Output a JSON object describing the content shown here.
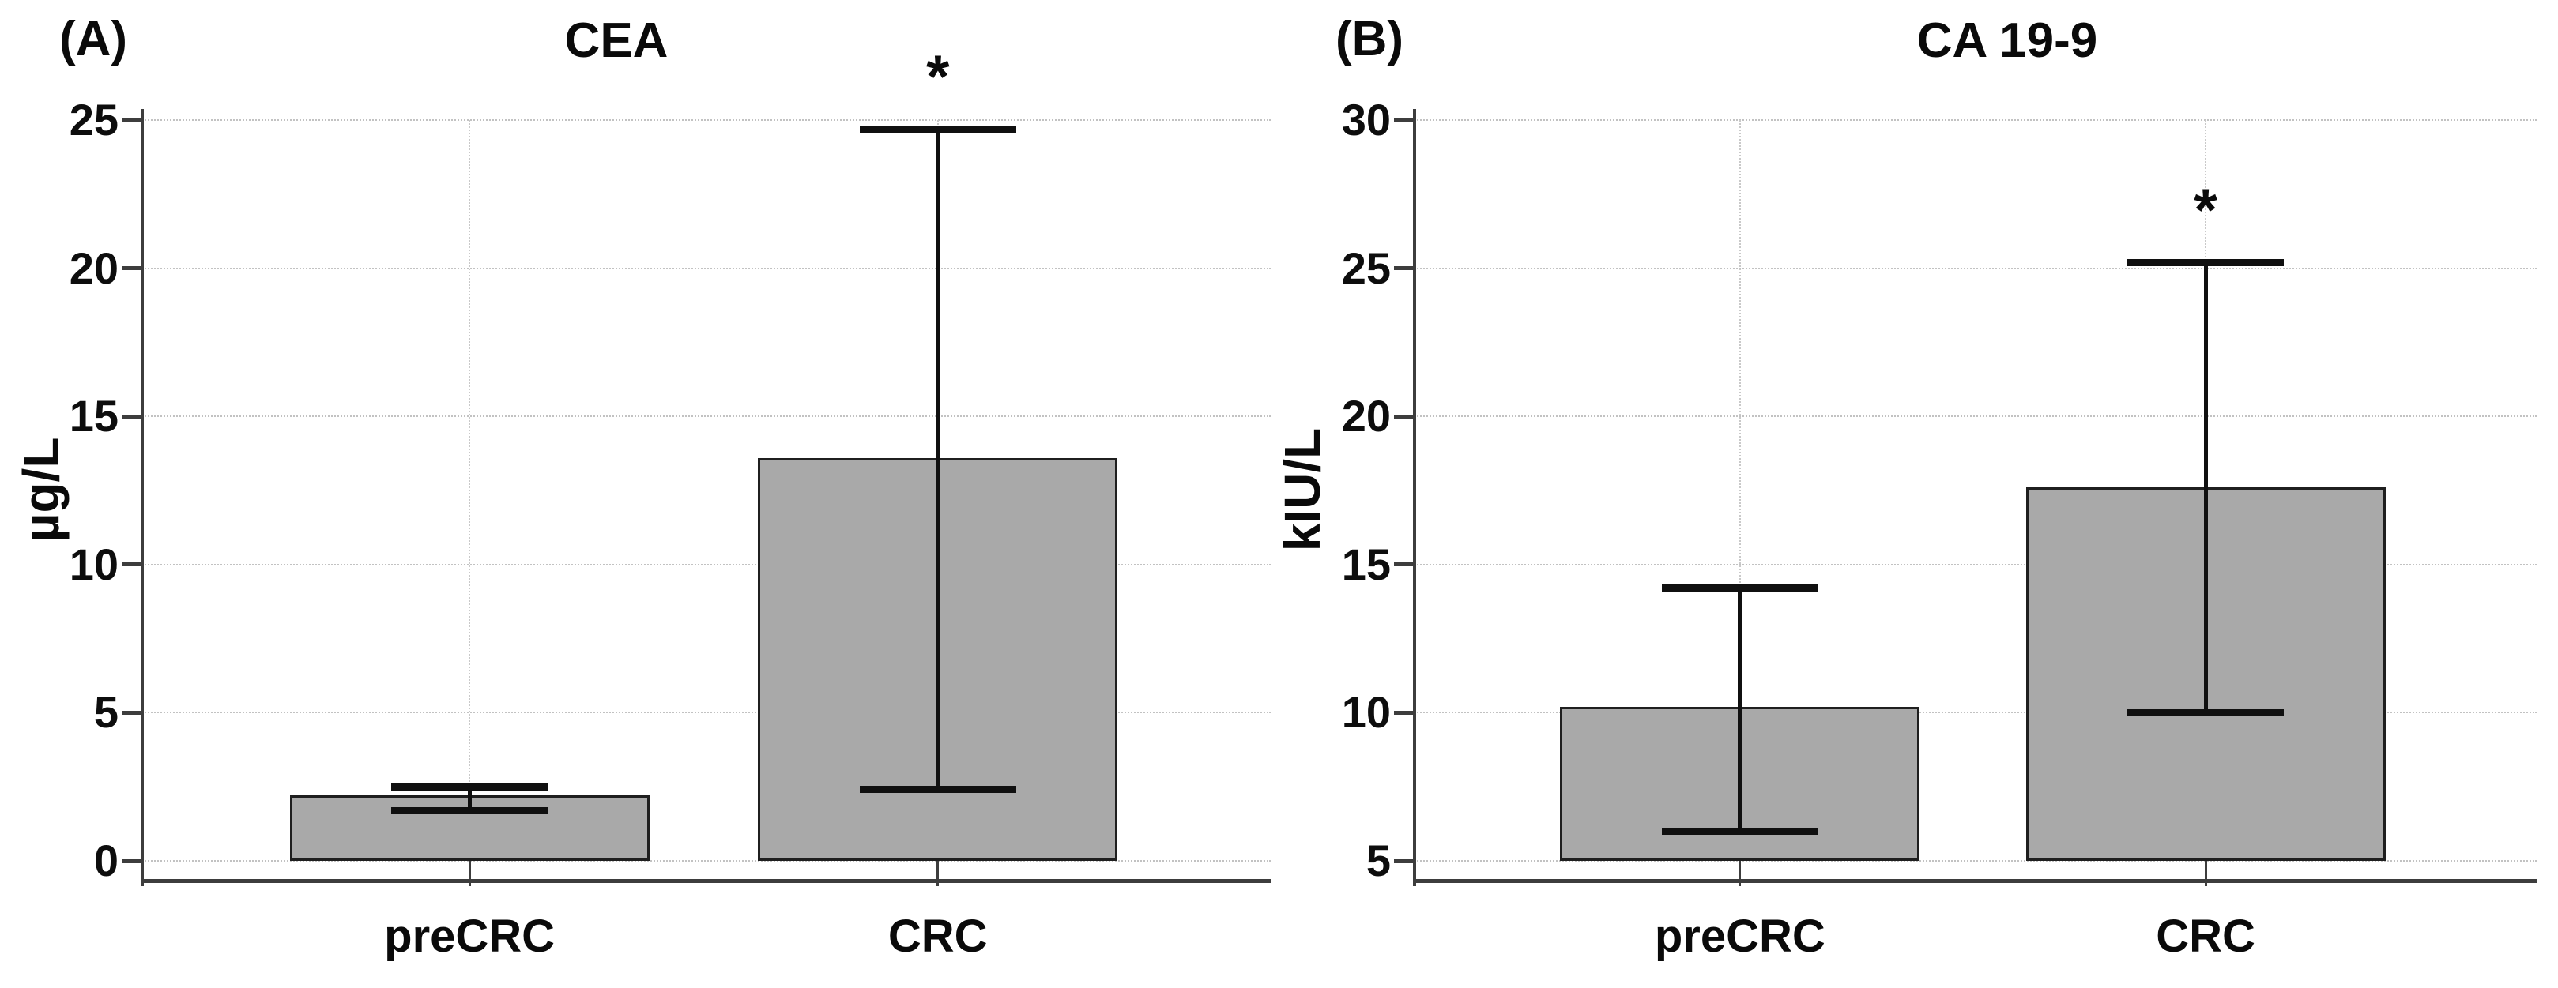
{
  "chart_data": [
    {
      "type": "bar",
      "panel_label": "(A)",
      "title": "CEA",
      "ylabel": "µg/L",
      "xlabel": "",
      "categories": [
        "preCRC",
        "CRC"
      ],
      "values": [
        2.2,
        13.6
      ],
      "error_low": [
        1.7,
        2.4
      ],
      "error_high": [
        2.5,
        24.7
      ],
      "significance": [
        "",
        "*"
      ],
      "ylim": [
        0,
        25
      ],
      "yticks": [
        0,
        5,
        10,
        15,
        20,
        25
      ],
      "grid": "dotted horizontal at each y tick, dotted vertical at category centers",
      "legend": "none"
    },
    {
      "type": "bar",
      "panel_label": "(B)",
      "title": "CA 19-9",
      "ylabel": "kIU/L",
      "xlabel": "",
      "categories": [
        "preCRC",
        "CRC"
      ],
      "values": [
        10.2,
        17.6
      ],
      "error_low": [
        6.0,
        10.0
      ],
      "error_high": [
        14.2,
        25.2
      ],
      "significance": [
        "",
        "*"
      ],
      "ylim": [
        5,
        30
      ],
      "yticks": [
        5,
        10,
        15,
        20,
        25,
        30
      ],
      "grid": "dotted horizontal at each y tick, dotted vertical at category centers",
      "legend": "none"
    }
  ],
  "style": {
    "bar_fill": "#a9a9a9",
    "bar_border": "#1f1f1f",
    "error_bar_color": "#101010",
    "grid_color": "#c2c2c2",
    "axis_color": "#3d3d3d",
    "text_color": "#0a0a0a",
    "background": "#ffffff"
  }
}
